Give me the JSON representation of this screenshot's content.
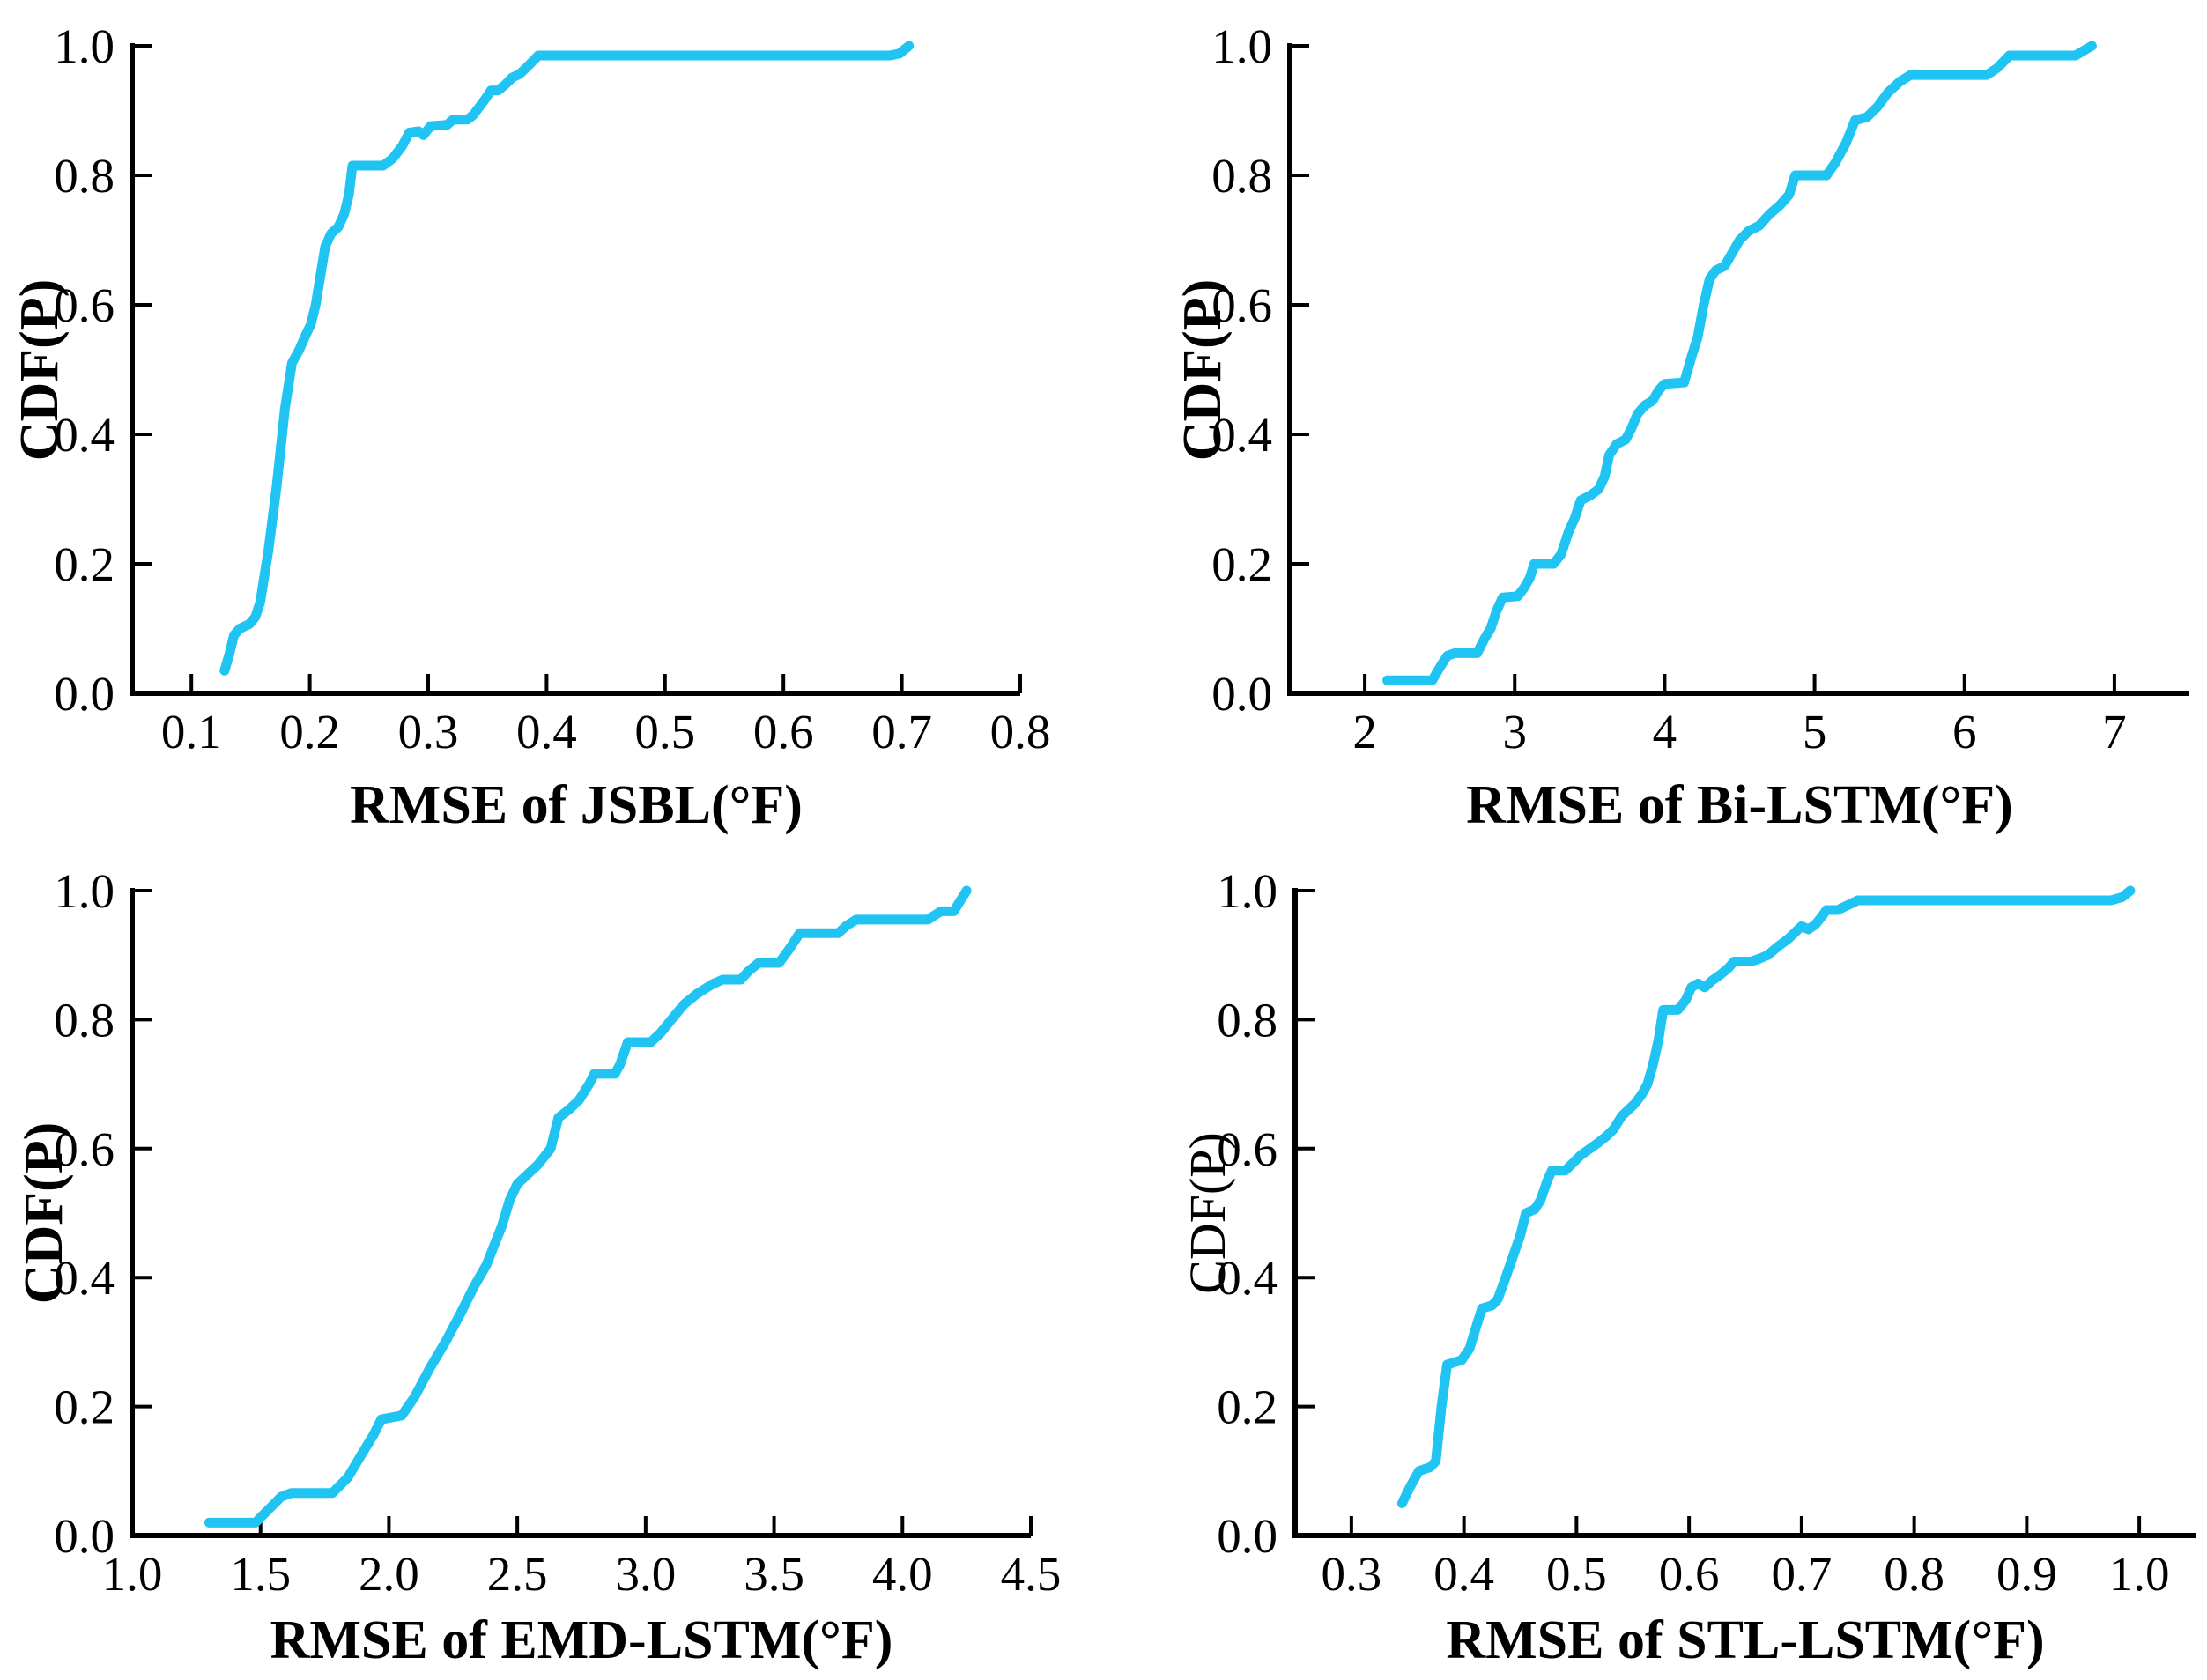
{
  "figure": {
    "background": "#FFFFFF",
    "axis_color": "#000000",
    "curve_color": "#1FC4F2"
  },
  "chart_data": [
    {
      "id": "jsbl",
      "type": "line",
      "title": "",
      "xlabel": "RMSE of JSBL(°F)",
      "ylabel": "CDF(P)",
      "xlim": [
        0.05,
        0.8
      ],
      "ylim": [
        0.0,
        1.0
      ],
      "grid": false,
      "legend_position": "none",
      "xtick_values": [
        0.1,
        0.2,
        0.3,
        0.4,
        0.5,
        0.6,
        0.7,
        0.8
      ],
      "xtick_labels": [
        "0.1",
        "0.2",
        "0.3",
        "0.4",
        "0.5",
        "0.6",
        "0.7",
        "0.8"
      ],
      "ytick_values": [
        0.0,
        0.2,
        0.4,
        0.6,
        0.8,
        1.0
      ],
      "ytick_labels": [
        "0.0",
        "0.2",
        "0.4",
        "0.6",
        "0.8",
        "1.0"
      ],
      "line_color": "#1FC4F2",
      "points": [
        [
          0.128,
          0.035
        ],
        [
          0.132,
          0.06
        ],
        [
          0.136,
          0.09
        ],
        [
          0.141,
          0.1
        ],
        [
          0.149,
          0.107
        ],
        [
          0.154,
          0.118
        ],
        [
          0.158,
          0.14
        ],
        [
          0.165,
          0.22
        ],
        [
          0.172,
          0.32
        ],
        [
          0.179,
          0.44
        ],
        [
          0.185,
          0.51
        ],
        [
          0.191,
          0.53
        ],
        [
          0.197,
          0.555
        ],
        [
          0.201,
          0.57
        ],
        [
          0.205,
          0.6
        ],
        [
          0.209,
          0.645
        ],
        [
          0.213,
          0.69
        ],
        [
          0.218,
          0.71
        ],
        [
          0.224,
          0.72
        ],
        [
          0.229,
          0.74
        ],
        [
          0.233,
          0.77
        ],
        [
          0.236,
          0.815
        ],
        [
          0.262,
          0.815
        ],
        [
          0.27,
          0.826
        ],
        [
          0.278,
          0.845
        ],
        [
          0.284,
          0.866
        ],
        [
          0.292,
          0.868
        ],
        [
          0.296,
          0.862
        ],
        [
          0.302,
          0.876
        ],
        [
          0.316,
          0.878
        ],
        [
          0.321,
          0.886
        ],
        [
          0.333,
          0.886
        ],
        [
          0.338,
          0.893
        ],
        [
          0.343,
          0.905
        ],
        [
          0.349,
          0.92
        ],
        [
          0.353,
          0.931
        ],
        [
          0.359,
          0.931
        ],
        [
          0.365,
          0.94
        ],
        [
          0.371,
          0.951
        ],
        [
          0.377,
          0.956
        ],
        [
          0.385,
          0.97
        ],
        [
          0.393,
          0.985
        ],
        [
          0.69,
          0.985
        ],
        [
          0.698,
          0.988
        ],
        [
          0.706,
          1.0
        ]
      ]
    },
    {
      "id": "bi-lstm",
      "type": "line",
      "title": "",
      "xlabel": "RMSE of Bi-LSTM(°F)",
      "ylabel": "CDF(P)",
      "xlim": [
        1.5,
        7.5
      ],
      "ylim": [
        0.0,
        1.0
      ],
      "grid": false,
      "legend_position": "none",
      "xtick_values": [
        2,
        3,
        4,
        5,
        6,
        7
      ],
      "xtick_labels": [
        "2",
        "3",
        "4",
        "5",
        "6",
        "7"
      ],
      "ytick_values": [
        0.0,
        0.2,
        0.4,
        0.6,
        0.8,
        1.0
      ],
      "ytick_labels": [
        "0.0",
        "0.2",
        "0.4",
        "0.6",
        "0.8",
        "1.0"
      ],
      "line_color": "#1FC4F2",
      "points": [
        [
          2.15,
          0.02
        ],
        [
          2.45,
          0.02
        ],
        [
          2.5,
          0.04
        ],
        [
          2.55,
          0.058
        ],
        [
          2.6,
          0.062
        ],
        [
          2.75,
          0.062
        ],
        [
          2.8,
          0.085
        ],
        [
          2.84,
          0.1
        ],
        [
          2.88,
          0.128
        ],
        [
          2.92,
          0.148
        ],
        [
          3.02,
          0.15
        ],
        [
          3.06,
          0.162
        ],
        [
          3.1,
          0.178
        ],
        [
          3.13,
          0.2
        ],
        [
          3.26,
          0.2
        ],
        [
          3.31,
          0.215
        ],
        [
          3.36,
          0.25
        ],
        [
          3.4,
          0.27
        ],
        [
          3.44,
          0.298
        ],
        [
          3.5,
          0.305
        ],
        [
          3.56,
          0.315
        ],
        [
          3.6,
          0.335
        ],
        [
          3.63,
          0.368
        ],
        [
          3.68,
          0.385
        ],
        [
          3.74,
          0.392
        ],
        [
          3.78,
          0.41
        ],
        [
          3.82,
          0.432
        ],
        [
          3.87,
          0.445
        ],
        [
          3.92,
          0.452
        ],
        [
          3.96,
          0.468
        ],
        [
          4.0,
          0.478
        ],
        [
          4.13,
          0.48
        ],
        [
          4.18,
          0.52
        ],
        [
          4.22,
          0.55
        ],
        [
          4.26,
          0.6
        ],
        [
          4.3,
          0.64
        ],
        [
          4.34,
          0.653
        ],
        [
          4.4,
          0.66
        ],
        [
          4.45,
          0.68
        ],
        [
          4.5,
          0.7
        ],
        [
          4.56,
          0.714
        ],
        [
          4.63,
          0.722
        ],
        [
          4.7,
          0.74
        ],
        [
          4.77,
          0.754
        ],
        [
          4.83,
          0.77
        ],
        [
          4.87,
          0.8
        ],
        [
          5.08,
          0.8
        ],
        [
          5.14,
          0.82
        ],
        [
          5.21,
          0.85
        ],
        [
          5.27,
          0.885
        ],
        [
          5.35,
          0.89
        ],
        [
          5.42,
          0.906
        ],
        [
          5.49,
          0.928
        ],
        [
          5.57,
          0.945
        ],
        [
          5.64,
          0.955
        ],
        [
          6.15,
          0.955
        ],
        [
          6.22,
          0.966
        ],
        [
          6.3,
          0.985
        ],
        [
          6.74,
          0.985
        ],
        [
          6.85,
          1.0
        ]
      ]
    },
    {
      "id": "emd-lstm",
      "type": "line",
      "title": "",
      "xlabel": "RMSE of EMD-LSTM(°F)",
      "ylabel": "CDF(P)",
      "xlim": [
        1.0,
        4.5
      ],
      "ylim": [
        0.0,
        1.0
      ],
      "grid": false,
      "legend_position": "none",
      "xtick_values": [
        1.0,
        1.5,
        2.0,
        2.5,
        3.0,
        3.5,
        4.0,
        4.5
      ],
      "xtick_labels": [
        "1.0",
        "1.5",
        "2.0",
        "2.5",
        "3.0",
        "3.5",
        "4.0",
        "4.5"
      ],
      "ytick_values": [
        0.0,
        0.2,
        0.4,
        0.6,
        0.8,
        1.0
      ],
      "ytick_labels": [
        "0.0",
        "0.2",
        "0.4",
        "0.6",
        "0.8",
        "1.0"
      ],
      "line_color": "#1FC4F2",
      "points": [
        [
          1.3,
          0.02
        ],
        [
          1.48,
          0.02
        ],
        [
          1.53,
          0.04
        ],
        [
          1.58,
          0.06
        ],
        [
          1.62,
          0.066
        ],
        [
          1.78,
          0.066
        ],
        [
          1.84,
          0.09
        ],
        [
          1.9,
          0.13
        ],
        [
          1.94,
          0.156
        ],
        [
          1.97,
          0.18
        ],
        [
          2.05,
          0.186
        ],
        [
          2.1,
          0.215
        ],
        [
          2.16,
          0.26
        ],
        [
          2.22,
          0.3
        ],
        [
          2.28,
          0.345
        ],
        [
          2.33,
          0.385
        ],
        [
          2.38,
          0.42
        ],
        [
          2.41,
          0.45
        ],
        [
          2.44,
          0.48
        ],
        [
          2.47,
          0.52
        ],
        [
          2.5,
          0.545
        ],
        [
          2.54,
          0.56
        ],
        [
          2.58,
          0.575
        ],
        [
          2.61,
          0.59
        ],
        [
          2.63,
          0.6
        ],
        [
          2.66,
          0.648
        ],
        [
          2.7,
          0.66
        ],
        [
          2.74,
          0.675
        ],
        [
          2.78,
          0.7
        ],
        [
          2.8,
          0.716
        ],
        [
          2.88,
          0.716
        ],
        [
          2.9,
          0.73
        ],
        [
          2.93,
          0.765
        ],
        [
          3.02,
          0.765
        ],
        [
          3.06,
          0.78
        ],
        [
          3.1,
          0.8
        ],
        [
          3.15,
          0.824
        ],
        [
          3.2,
          0.84
        ],
        [
          3.26,
          0.855
        ],
        [
          3.3,
          0.862
        ],
        [
          3.37,
          0.862
        ],
        [
          3.4,
          0.875
        ],
        [
          3.44,
          0.888
        ],
        [
          3.52,
          0.888
        ],
        [
          3.56,
          0.91
        ],
        [
          3.6,
          0.934
        ],
        [
          3.75,
          0.934
        ],
        [
          3.78,
          0.945
        ],
        [
          3.82,
          0.955
        ],
        [
          4.1,
          0.955
        ],
        [
          4.15,
          0.968
        ],
        [
          4.2,
          0.968
        ],
        [
          4.25,
          1.0
        ]
      ]
    },
    {
      "id": "stl-lstm",
      "type": "line",
      "title": "",
      "xlabel": "RMSE of STL-LSTM(°F)",
      "ylabel": "CDF(P)",
      "xlim": [
        0.25,
        1.05
      ],
      "ylim": [
        0.0,
        1.0
      ],
      "grid": false,
      "legend_position": "none",
      "xtick_values": [
        0.3,
        0.4,
        0.5,
        0.6,
        0.7,
        0.8,
        0.9,
        1.0
      ],
      "xtick_labels": [
        "0.3",
        "0.4",
        "0.5",
        "0.6",
        "0.7",
        "0.8",
        "0.9",
        "1.0"
      ],
      "ytick_values": [
        0.0,
        0.2,
        0.4,
        0.6,
        0.8,
        1.0
      ],
      "ytick_labels": [
        "0.0",
        "0.2",
        "0.4",
        "0.6",
        "0.8",
        "1.0"
      ],
      "line_color": "#1FC4F2",
      "points": [
        [
          0.345,
          0.05
        ],
        [
          0.352,
          0.075
        ],
        [
          0.36,
          0.1
        ],
        [
          0.37,
          0.106
        ],
        [
          0.375,
          0.115
        ],
        [
          0.38,
          0.2
        ],
        [
          0.385,
          0.265
        ],
        [
          0.398,
          0.272
        ],
        [
          0.405,
          0.29
        ],
        [
          0.412,
          0.33
        ],
        [
          0.416,
          0.352
        ],
        [
          0.425,
          0.357
        ],
        [
          0.43,
          0.366
        ],
        [
          0.437,
          0.4
        ],
        [
          0.443,
          0.43
        ],
        [
          0.45,
          0.465
        ],
        [
          0.455,
          0.5
        ],
        [
          0.463,
          0.506
        ],
        [
          0.468,
          0.52
        ],
        [
          0.474,
          0.55
        ],
        [
          0.478,
          0.566
        ],
        [
          0.49,
          0.566
        ],
        [
          0.497,
          0.578
        ],
        [
          0.504,
          0.59
        ],
        [
          0.512,
          0.6
        ],
        [
          0.52,
          0.61
        ],
        [
          0.527,
          0.62
        ],
        [
          0.533,
          0.63
        ],
        [
          0.54,
          0.65
        ],
        [
          0.546,
          0.66
        ],
        [
          0.552,
          0.67
        ],
        [
          0.558,
          0.684
        ],
        [
          0.563,
          0.7
        ],
        [
          0.568,
          0.73
        ],
        [
          0.573,
          0.77
        ],
        [
          0.577,
          0.815
        ],
        [
          0.59,
          0.815
        ],
        [
          0.597,
          0.83
        ],
        [
          0.602,
          0.85
        ],
        [
          0.608,
          0.856
        ],
        [
          0.614,
          0.85
        ],
        [
          0.62,
          0.86
        ],
        [
          0.628,
          0.87
        ],
        [
          0.635,
          0.88
        ],
        [
          0.64,
          0.89
        ],
        [
          0.655,
          0.89
        ],
        [
          0.663,
          0.895
        ],
        [
          0.67,
          0.9
        ],
        [
          0.678,
          0.912
        ],
        [
          0.688,
          0.925
        ],
        [
          0.694,
          0.935
        ],
        [
          0.7,
          0.945
        ],
        [
          0.706,
          0.94
        ],
        [
          0.712,
          0.947
        ],
        [
          0.718,
          0.96
        ],
        [
          0.722,
          0.97
        ],
        [
          0.732,
          0.97
        ],
        [
          0.738,
          0.975
        ],
        [
          0.75,
          0.985
        ],
        [
          0.975,
          0.985
        ],
        [
          0.985,
          0.99
        ],
        [
          0.992,
          1.0
        ]
      ]
    }
  ]
}
